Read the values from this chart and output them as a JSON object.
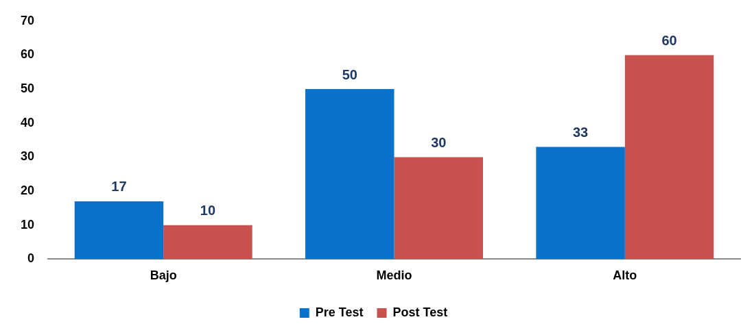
{
  "chart_data": {
    "type": "bar",
    "categories": [
      "Bajo",
      "Medio",
      "Alto"
    ],
    "series": [
      {
        "name": "Pre Test",
        "color": "#0a72c8",
        "values": [
          17,
          50,
          33
        ]
      },
      {
        "name": "Post Test",
        "color": "#c9524f",
        "values": [
          10,
          30,
          60
        ]
      }
    ],
    "ylim": [
      0,
      70
    ],
    "yticks": [
      0,
      10,
      20,
      30,
      40,
      50,
      60,
      70
    ],
    "grid": false,
    "legend": "bottom",
    "data_labels": true
  }
}
